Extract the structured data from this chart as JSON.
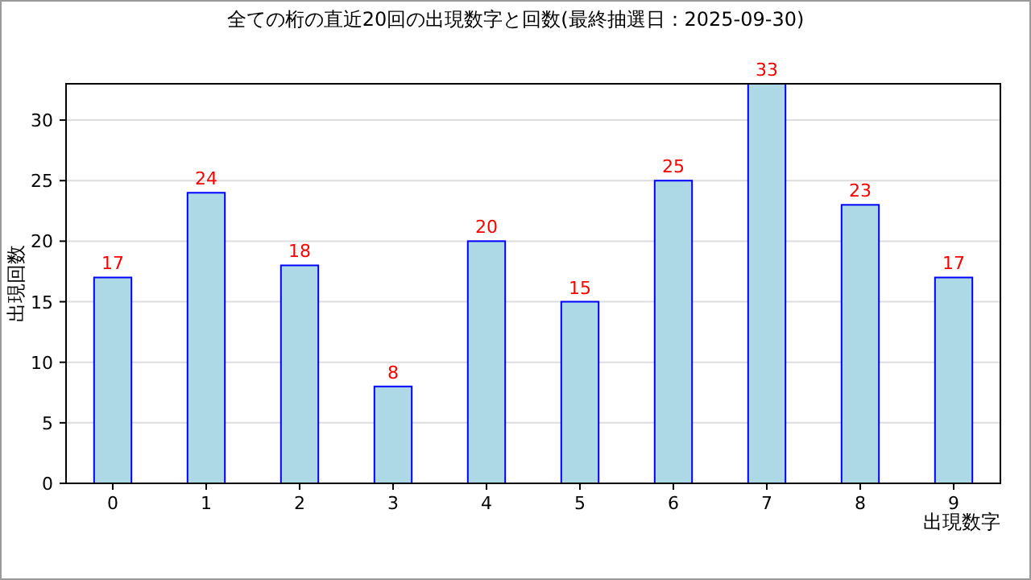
{
  "chart_data": {
    "type": "bar",
    "title": "全ての桁の直近20回の出現数字と回数(最終抽選日：2025-09-30)",
    "xlabel": "出現数字",
    "ylabel": "出現回数",
    "categories": [
      "0",
      "1",
      "2",
      "3",
      "4",
      "5",
      "6",
      "7",
      "8",
      "9"
    ],
    "series": [
      {
        "color": "#add8e6",
        "values": [
          17,
          24,
          18,
          8,
          20,
          15,
          25,
          33,
          23,
          17
        ]
      }
    ],
    "ylim": [
      0,
      33
    ],
    "yticks": [
      0,
      5,
      10,
      15,
      20,
      25,
      30
    ],
    "grid": "y",
    "data_labels": true
  }
}
